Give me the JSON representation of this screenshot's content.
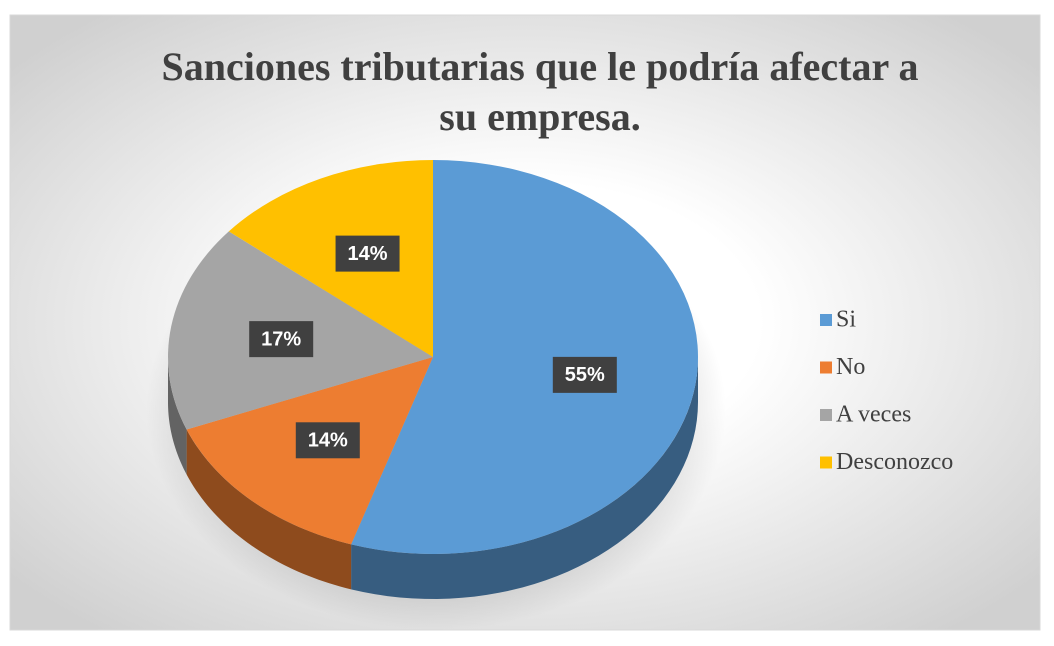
{
  "chart_data": {
    "type": "pie",
    "title": "Sanciones tributarias que le podría afectar a su empresa.",
    "categories": [
      "Si",
      "No",
      "A veces",
      "Desconozco"
    ],
    "values": [
      55,
      14,
      17,
      14
    ],
    "value_labels": [
      "55%",
      "14%",
      "17%",
      "14%"
    ],
    "colors": [
      "#5b9bd5",
      "#ed7d31",
      "#a5a5a5",
      "#ffc000"
    ],
    "legend": "right"
  }
}
